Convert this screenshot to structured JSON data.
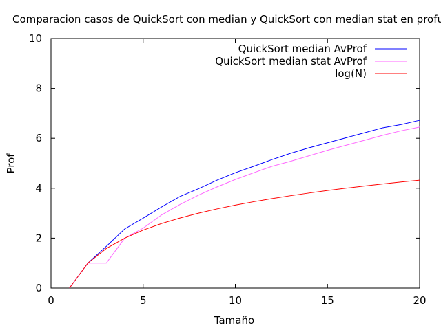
{
  "chart_data": {
    "type": "line",
    "title": "Comparacion casos de QuickSort con median y QuickSort con median stat en profundidad",
    "xlabel": "Tamaño",
    "ylabel": "Prof",
    "xlim": [
      0,
      20
    ],
    "ylim": [
      0,
      10
    ],
    "x_ticks": [
      "0",
      "5",
      "10",
      "15",
      "20"
    ],
    "y_ticks": [
      "0",
      "2",
      "4",
      "6",
      "8",
      "10"
    ],
    "grid": false,
    "legend_position": "top-right",
    "series": [
      {
        "name": "QuickSort median AvProf",
        "color": "#0000ff",
        "x": [
          1,
          2,
          3,
          4,
          5,
          6,
          7,
          8,
          9,
          10,
          11,
          12,
          13,
          14,
          15,
          16,
          17,
          18,
          19,
          20
        ],
        "y": [
          0,
          1,
          1.67,
          2.37,
          2.8,
          3.25,
          3.67,
          3.98,
          4.32,
          4.62,
          4.88,
          5.15,
          5.4,
          5.62,
          5.82,
          6.02,
          6.22,
          6.42,
          6.55,
          6.72
        ]
      },
      {
        "name": "QuickSort median stat AvProf",
        "color": "#ff66ff",
        "x": [
          1,
          2,
          3,
          4,
          5,
          6,
          7,
          8,
          9,
          10,
          11,
          12,
          13,
          14,
          15,
          16,
          17,
          18,
          19,
          20
        ],
        "y": [
          0,
          1,
          1,
          2,
          2.4,
          2.93,
          3.35,
          3.72,
          4.05,
          4.35,
          4.62,
          4.88,
          5.08,
          5.3,
          5.52,
          5.72,
          5.92,
          6.12,
          6.3,
          6.45
        ]
      },
      {
        "name": "log(N)",
        "color": "#ff0000",
        "x": [
          1,
          2,
          3,
          4,
          5,
          6,
          7,
          8,
          9,
          10,
          11,
          12,
          13,
          14,
          15,
          16,
          17,
          18,
          19,
          20
        ],
        "y": [
          0,
          1,
          1.585,
          2,
          2.322,
          2.585,
          2.807,
          3,
          3.17,
          3.322,
          3.459,
          3.585,
          3.7,
          3.807,
          3.907,
          4,
          4.087,
          4.17,
          4.248,
          4.322
        ]
      }
    ]
  }
}
